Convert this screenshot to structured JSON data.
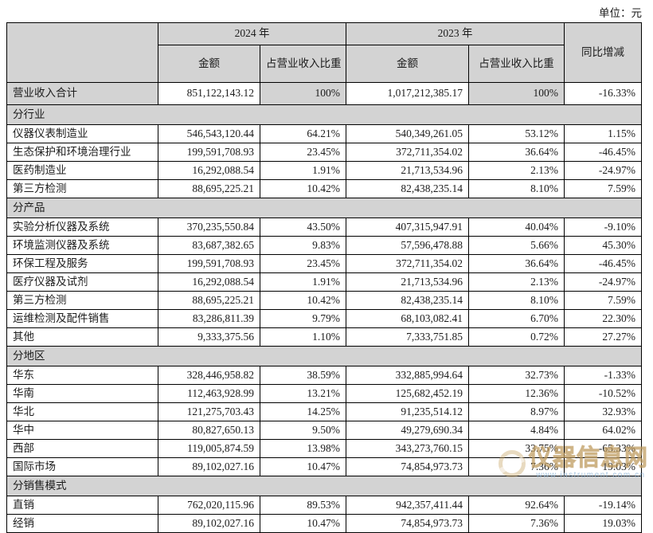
{
  "page": {
    "unit_label": "单位：元"
  },
  "table": {
    "header": {
      "year_2024": "2024 年",
      "year_2023": "2023 年",
      "amount": "金额",
      "proportion": "占营业收入比重",
      "yoy": "同比增减"
    },
    "rows": [
      {
        "type": "total",
        "label": "营业收入合计",
        "a2024": "851,122,143.12",
        "p2024": "100%",
        "a2023": "1,017,212,385.17",
        "p2023": "100%",
        "yoy": "-16.33%"
      },
      {
        "type": "section",
        "label": "分行业"
      },
      {
        "type": "data",
        "label": "仪器仪表制造业",
        "a2024": "546,543,120.44",
        "p2024": "64.21%",
        "a2023": "540,349,261.05",
        "p2023": "53.12%",
        "yoy": "1.15%"
      },
      {
        "type": "data",
        "label": "生态保护和环境治理行业",
        "a2024": "199,591,708.93",
        "p2024": "23.45%",
        "a2023": "372,711,354.02",
        "p2023": "36.64%",
        "yoy": "-46.45%"
      },
      {
        "type": "data",
        "label": "医药制造业",
        "a2024": "16,292,088.54",
        "p2024": "1.91%",
        "a2023": "21,713,534.96",
        "p2023": "2.13%",
        "yoy": "-24.97%"
      },
      {
        "type": "data",
        "label": "第三方检测",
        "a2024": "88,695,225.21",
        "p2024": "10.42%",
        "a2023": "82,438,235.14",
        "p2023": "8.10%",
        "yoy": "7.59%"
      },
      {
        "type": "section",
        "label": "分产品"
      },
      {
        "type": "data",
        "label": "实验分析仪器及系统",
        "a2024": "370,235,550.84",
        "p2024": "43.50%",
        "a2023": "407,315,947.91",
        "p2023": "40.04%",
        "yoy": "-9.10%"
      },
      {
        "type": "data",
        "label": "环境监测仪器及系统",
        "a2024": "83,687,382.65",
        "p2024": "9.83%",
        "a2023": "57,596,478.88",
        "p2023": "5.66%",
        "yoy": "45.30%"
      },
      {
        "type": "data",
        "label": "环保工程及服务",
        "a2024": "199,591,708.93",
        "p2024": "23.45%",
        "a2023": "372,711,354.02",
        "p2023": "36.64%",
        "yoy": "-46.45%"
      },
      {
        "type": "data",
        "label": "医疗仪器及试剂",
        "a2024": "16,292,088.54",
        "p2024": "1.91%",
        "a2023": "21,713,534.96",
        "p2023": "2.13%",
        "yoy": "-24.97%"
      },
      {
        "type": "data",
        "label": "第三方检测",
        "a2024": "88,695,225.21",
        "p2024": "10.42%",
        "a2023": "82,438,235.14",
        "p2023": "8.10%",
        "yoy": "7.59%"
      },
      {
        "type": "data",
        "label": "运维检测及配件销售",
        "a2024": "83,286,811.39",
        "p2024": "9.79%",
        "a2023": "68,103,082.41",
        "p2023": "6.70%",
        "yoy": "22.30%"
      },
      {
        "type": "data",
        "label": "其他",
        "a2024": "9,333,375.56",
        "p2024": "1.10%",
        "a2023": "7,333,751.85",
        "p2023": "0.72%",
        "yoy": "27.27%"
      },
      {
        "type": "section",
        "label": "分地区"
      },
      {
        "type": "data",
        "label": "华东",
        "a2024": "328,446,958.82",
        "p2024": "38.59%",
        "a2023": "332,885,994.64",
        "p2023": "32.73%",
        "yoy": "-1.33%"
      },
      {
        "type": "data",
        "label": "华南",
        "a2024": "112,463,928.99",
        "p2024": "13.21%",
        "a2023": "125,682,452.19",
        "p2023": "12.36%",
        "yoy": "-10.52%"
      },
      {
        "type": "data",
        "label": "华北",
        "a2024": "121,275,703.43",
        "p2024": "14.25%",
        "a2023": "91,235,514.12",
        "p2023": "8.97%",
        "yoy": "32.93%"
      },
      {
        "type": "data",
        "label": "华中",
        "a2024": "80,827,650.13",
        "p2024": "9.50%",
        "a2023": "49,279,690.34",
        "p2023": "4.84%",
        "yoy": "64.02%"
      },
      {
        "type": "data",
        "label": "西部",
        "a2024": "119,005,874.59",
        "p2024": "13.98%",
        "a2023": "343,273,760.15",
        "p2023": "33.75%",
        "yoy": "-65.33%"
      },
      {
        "type": "data",
        "label": "国际市场",
        "a2024": "89,102,027.16",
        "p2024": "10.47%",
        "a2023": "74,854,973.73",
        "p2023": "7.36%",
        "yoy": "19.03%"
      },
      {
        "type": "section",
        "label": "分销售模式"
      },
      {
        "type": "data",
        "label": "直销",
        "a2024": "762,020,115.96",
        "p2024": "89.53%",
        "a2023": "942,357,411.44",
        "p2023": "92.64%",
        "yoy": "-19.14%"
      },
      {
        "type": "data",
        "label": "经销",
        "a2024": "89,102,027.16",
        "p2024": "10.47%",
        "a2023": "74,854,973.73",
        "p2023": "7.36%",
        "yoy": "19.03%"
      }
    ]
  },
  "watermark": {
    "text": "仪器信息网",
    "subtext": "www.instrument.com.cn"
  },
  "colors": {
    "cell_gray": "#d3d3d3",
    "border": "#000000",
    "text": "#1c1c1c",
    "watermark_tan": "#c9a869",
    "watermark_blue": "#8cb4d7"
  }
}
